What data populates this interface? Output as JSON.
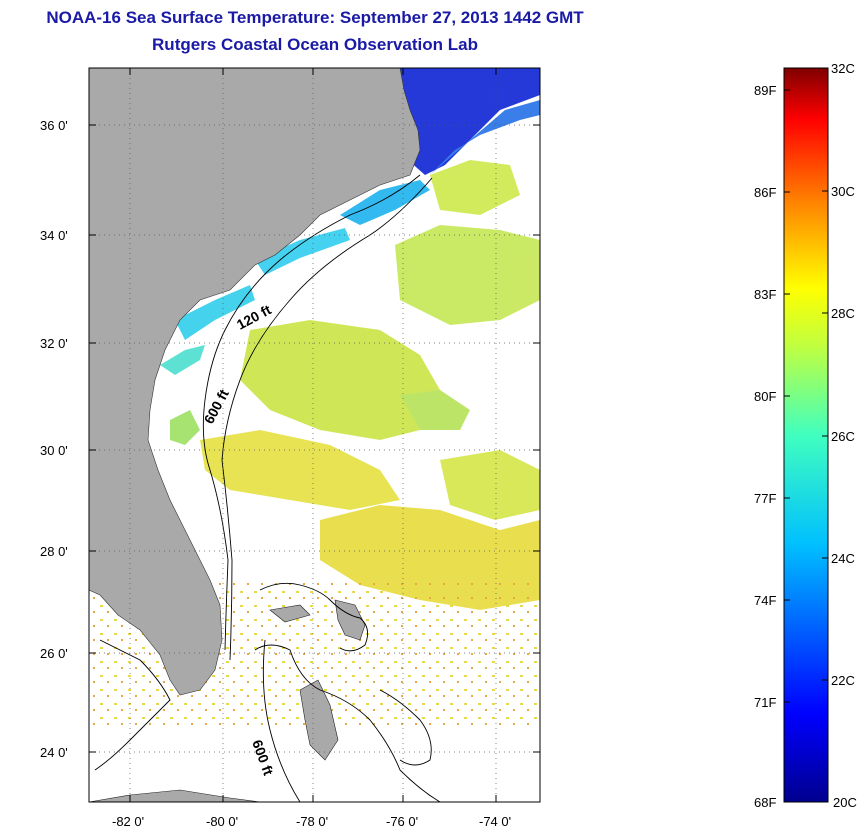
{
  "title": {
    "line1": "NOAA-16 Sea Surface Temperature:  September 27, 2013 1442 GMT",
    "line2": "Rutgers Coastal Ocean Observation Lab"
  },
  "map": {
    "lat_ticks": [
      "36 0'",
      "34 0'",
      "32 0'",
      "30 0'",
      "28 0'",
      "26 0'",
      "24 0'"
    ],
    "lon_ticks": [
      "-82 0'",
      "-80 0'",
      "-78 0'",
      "-76 0'",
      "-74 0'"
    ],
    "contour_labels": [
      "120 ft",
      "600 ft",
      "600 ft"
    ],
    "land_color": "#a9a9a9",
    "cloud_color": "#ffffff"
  },
  "colorbar": {
    "celsius_labels": [
      "32C",
      "30C",
      "28C",
      "26C",
      "24C",
      "22C",
      "20C"
    ],
    "fahrenheit_labels": [
      "89F",
      "86F",
      "83F",
      "80F",
      "77F",
      "74F",
      "71F",
      "68F"
    ],
    "min_c": 20,
    "max_c": 32
  }
}
